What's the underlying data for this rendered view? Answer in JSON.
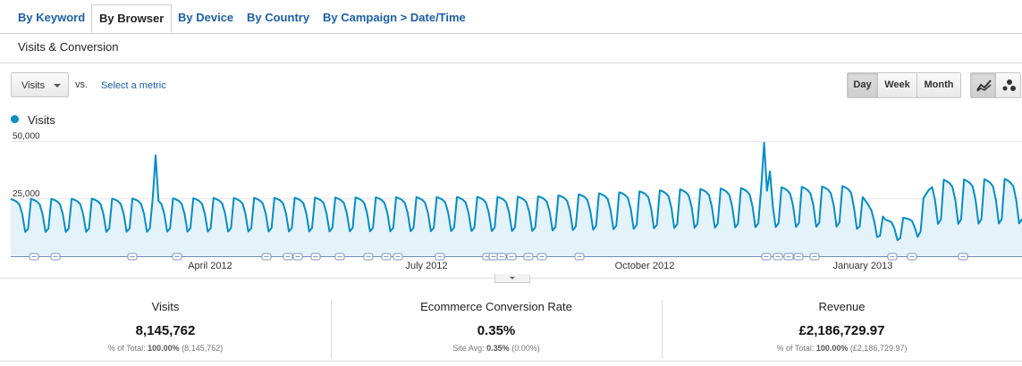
{
  "tabs": [
    {
      "label": "By Keyword"
    },
    {
      "label": "By Browser"
    },
    {
      "label": "By Device"
    },
    {
      "label": "By Country"
    },
    {
      "label": "By Campaign > Date/Time"
    }
  ],
  "section_title": "Visits & Conversion",
  "controls": {
    "metric_select": "Visits",
    "vs_label": "vs.",
    "select_metric_link": "Select a metric",
    "granularity": [
      "Day",
      "Week",
      "Month"
    ],
    "granularity_selected": "Day",
    "chart_modes": [
      "line-chart",
      "motion-chart"
    ],
    "chart_mode_selected": "line-chart"
  },
  "legend": {
    "label": "Visits",
    "color": "#058dc7"
  },
  "chart_data": {
    "type": "area",
    "series": [
      {
        "name": "Visits",
        "color": "#058dc7"
      }
    ],
    "y_ticks": [
      {
        "value": 50000,
        "label": "50,000"
      },
      {
        "value": 25000,
        "label": "25,000"
      }
    ],
    "ylim": [
      0,
      52000
    ],
    "x_ticks": [
      "April 2012",
      "July 2012",
      "October 2012",
      "January 2013"
    ],
    "days": 350,
    "weekday_pattern": [
      26000,
      25500,
      24800,
      23500,
      19000,
      11000,
      12500
    ],
    "trend_multiplier": [
      {
        "day": 0,
        "m": 0.96
      },
      {
        "day": 180,
        "m": 1.0
      },
      {
        "day": 230,
        "m": 1.12
      },
      {
        "day": 290,
        "m": 1.18
      },
      {
        "day": 302,
        "m": 0.62
      },
      {
        "day": 312,
        "m": 0.66
      },
      {
        "day": 318,
        "m": 1.28
      },
      {
        "day": 349,
        "m": 1.3
      }
    ],
    "spikes": [
      {
        "day": 50,
        "value": 44000
      },
      {
        "day": 260,
        "value": 49500
      },
      {
        "day": 262,
        "value": 37000
      }
    ]
  },
  "summary": [
    {
      "title": "Visits",
      "value": "8,145,762",
      "sub_label": "% of Total:",
      "sub_bold": "100.00%",
      "sub_rest": "(8,145,762)"
    },
    {
      "title": "Ecommerce Conversion Rate",
      "value": "0.35%",
      "sub_label": "Site Avg:",
      "sub_bold": "0.35%",
      "sub_rest": "(0.00%)"
    },
    {
      "title": "Revenue",
      "value": "£2,186,729.97",
      "sub_label": "% of Total:",
      "sub_bold": "100.00%",
      "sub_rest": "(£2,186,729.97)"
    }
  ]
}
